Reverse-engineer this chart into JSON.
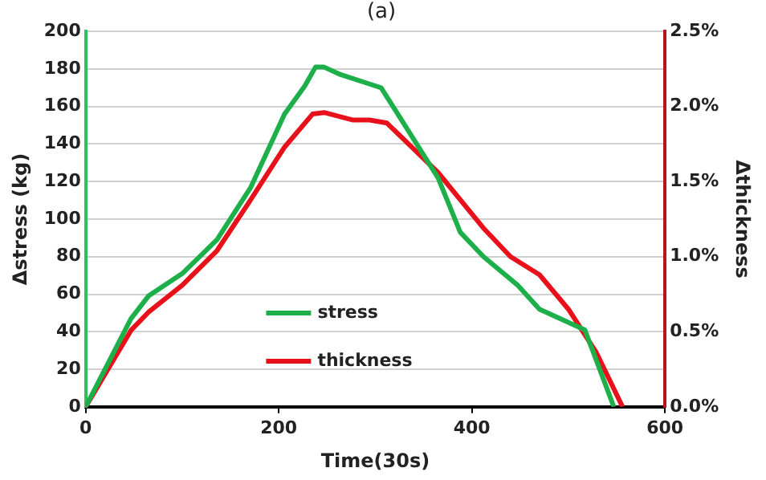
{
  "chart_data": {
    "type": "line",
    "title": "(a)",
    "xlabel": "Time(30s)",
    "ylabel": "Δstress (kg)",
    "y2label": "Δthickness",
    "xlim": [
      0,
      600
    ],
    "xticks": [
      0,
      200,
      400,
      600
    ],
    "ylim": [
      0,
      200
    ],
    "yticks": [
      0,
      20,
      40,
      60,
      80,
      100,
      120,
      140,
      160,
      180,
      200
    ],
    "y2lim": [
      0,
      2.5
    ],
    "y2ticks": [
      {
        "value": 0,
        "label": "0.0%"
      },
      {
        "value": 0.5,
        "label": "0.5%"
      },
      {
        "value": 1,
        "label": "1.0%"
      },
      {
        "value": 1.5,
        "label": "1.5%"
      },
      {
        "value": 2,
        "label": "2.0%"
      },
      {
        "value": 2.5,
        "label": "2.5%"
      }
    ],
    "grid": "y",
    "legend": "center",
    "marker": "none",
    "line_style": "solid",
    "series": [
      {
        "name": "stress",
        "color": "#1db04a",
        "x": [
          0,
          47,
          65,
          100,
          136,
          171,
          206,
          227,
          238,
          247,
          264,
          300,
          306,
          365,
          388,
          412,
          447,
          470,
          517,
          547
        ],
        "values": [
          0,
          47,
          59,
          71,
          89,
          117,
          156,
          171,
          181,
          181,
          177,
          171,
          170,
          122,
          93,
          80,
          65,
          52,
          41,
          0
        ]
      },
      {
        "name": "thickness",
        "color": "#e8101a",
        "axis": "y2",
        "x": [
          0,
          47,
          65,
          100,
          136,
          171,
          206,
          235,
          247,
          277,
          294,
          312,
          365,
          412,
          440,
          470,
          500,
          529,
          556
        ],
        "values": [
          0,
          0.51,
          0.63,
          0.81,
          1.04,
          1.38,
          1.73,
          1.95,
          1.96,
          1.91,
          1.91,
          1.89,
          1.56,
          1.19,
          1.0,
          0.88,
          0.65,
          0.36,
          0
        ]
      }
    ]
  }
}
